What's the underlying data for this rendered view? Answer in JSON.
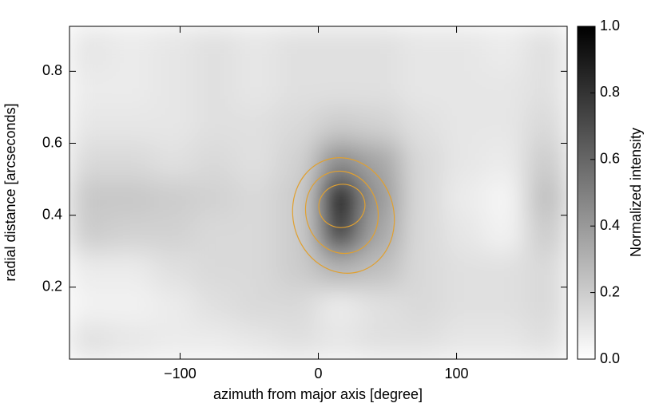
{
  "chart_data": {
    "type": "heatmap",
    "xlabel": "azimuth from major axis [degree]",
    "ylabel": "radial distance [arcseconds]",
    "colorbar_label": "Normalized intensity",
    "x": [
      -165,
      -135,
      -105,
      -75,
      -45,
      -15,
      15,
      45,
      75,
      105,
      135,
      165
    ],
    "y": [
      0.05,
      0.15,
      0.25,
      0.35,
      0.45,
      0.55,
      0.65,
      0.75,
      0.85
    ],
    "values": [
      [
        0.12,
        0.1,
        0.08,
        0.08,
        0.1,
        0.12,
        0.1,
        0.12,
        0.12,
        0.1,
        0.1,
        0.12
      ],
      [
        0.05,
        0.05,
        0.08,
        0.12,
        0.15,
        0.15,
        0.08,
        0.12,
        0.15,
        0.12,
        0.12,
        0.15
      ],
      [
        0.08,
        0.08,
        0.12,
        0.15,
        0.15,
        0.2,
        0.3,
        0.25,
        0.15,
        0.12,
        0.12,
        0.15
      ],
      [
        0.2,
        0.18,
        0.18,
        0.15,
        0.15,
        0.2,
        0.75,
        0.35,
        0.15,
        0.1,
        0.05,
        0.2
      ],
      [
        0.22,
        0.22,
        0.2,
        0.18,
        0.15,
        0.2,
        1.0,
        0.4,
        0.15,
        0.08,
        0.04,
        0.25
      ],
      [
        0.15,
        0.15,
        0.12,
        0.15,
        0.12,
        0.18,
        0.45,
        0.35,
        0.15,
        0.1,
        0.08,
        0.2
      ],
      [
        0.1,
        0.1,
        0.1,
        0.12,
        0.12,
        0.15,
        0.2,
        0.18,
        0.12,
        0.1,
        0.1,
        0.15
      ],
      [
        0.08,
        0.08,
        0.1,
        0.12,
        0.1,
        0.12,
        0.12,
        0.12,
        0.1,
        0.1,
        0.1,
        0.12
      ],
      [
        0.1,
        0.08,
        0.1,
        0.12,
        0.1,
        0.12,
        0.12,
        0.12,
        0.1,
        0.1,
        0.08,
        0.12
      ]
    ],
    "xlim": [
      -180,
      180
    ],
    "ylim": [
      0,
      0.925
    ],
    "xticks": [
      {
        "value": -100,
        "label": "−100"
      },
      0,
      100
    ],
    "yticks": [
      0.2,
      0.4,
      0.6,
      0.8
    ],
    "zlim": [
      0,
      1
    ],
    "zticks": [
      {
        "value": 0,
        "label": "0.0"
      },
      0.2,
      0.4,
      0.6,
      0.8,
      {
        "value": 1,
        "label": "1.0"
      }
    ],
    "colormap": [
      "#ffffff",
      "#000000"
    ]
  }
}
